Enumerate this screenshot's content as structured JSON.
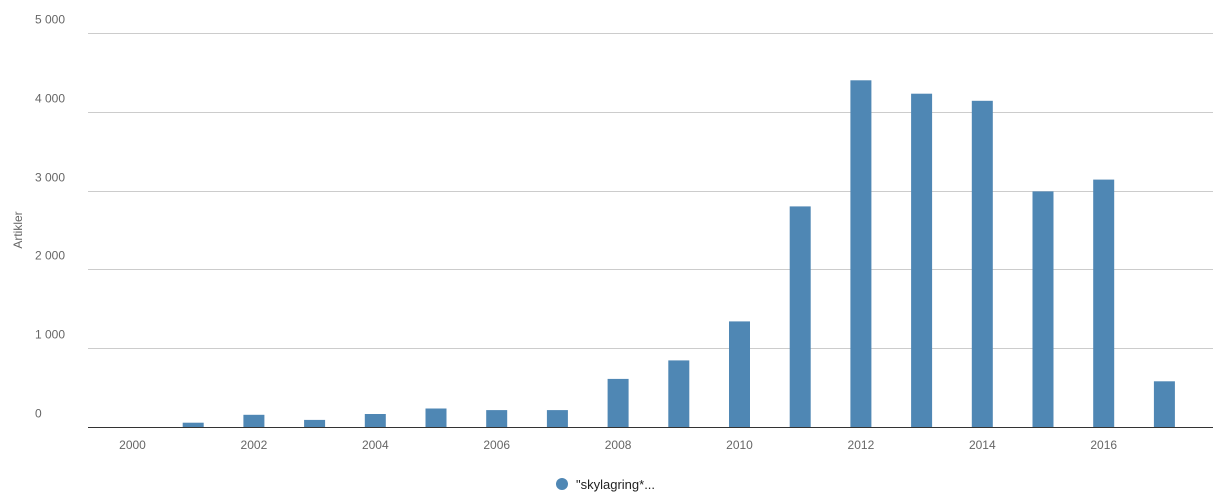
{
  "chart_data": {
    "type": "bar",
    "title": "",
    "xlabel": "",
    "ylabel": "Artikler",
    "categories": [
      "2000",
      "2001",
      "2002",
      "2003",
      "2004",
      "2005",
      "2006",
      "2007",
      "2008",
      "2009",
      "2010",
      "2011",
      "2012",
      "2013",
      "2014",
      "2015",
      "2016",
      "2017"
    ],
    "x_tick_labels": [
      "2000",
      "2002",
      "2004",
      "2006",
      "2008",
      "2010",
      "2012",
      "2014",
      "2016"
    ],
    "y_ticks": [
      0,
      1000,
      2000,
      3000,
      4000,
      5000
    ],
    "y_tick_labels": [
      "0",
      "1 000",
      "2 000",
      "3 000",
      "4 000",
      "5 000"
    ],
    "ylim": [
      0,
      5000
    ],
    "grid": true,
    "legend_position": "bottom-center",
    "series": [
      {
        "name": "\"skylagring*...",
        "color": "#4f87b4",
        "values": [
          0,
          55,
          155,
          90,
          165,
          235,
          215,
          215,
          610,
          845,
          1340,
          2800,
          4400,
          4230,
          4140,
          2990,
          3140,
          580
        ]
      }
    ]
  }
}
